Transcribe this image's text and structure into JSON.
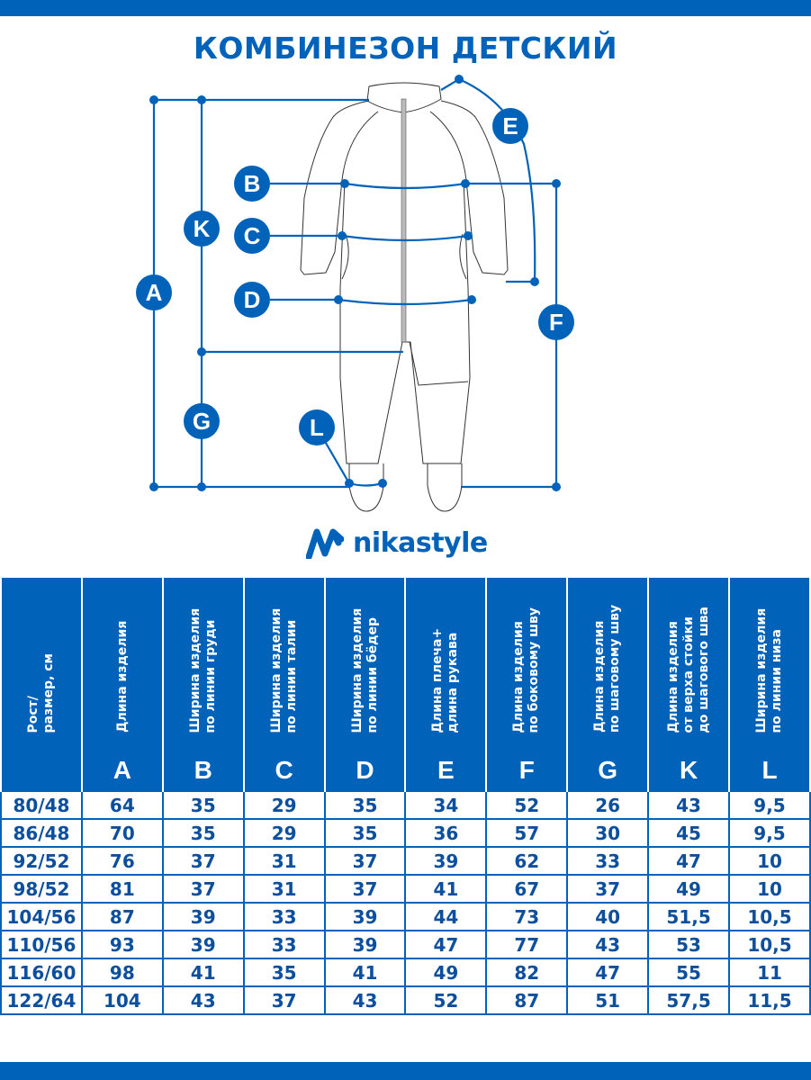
{
  "title": "КОМБИНЕЗОН ДЕТСКИЙ",
  "brand": {
    "name": "nikastyle",
    "color": "#0062b8"
  },
  "diagram_labels": [
    "A",
    "K",
    "G",
    "B",
    "C",
    "D",
    "E",
    "F",
    "L"
  ],
  "table": {
    "headers": [
      {
        "text": "Рост/\nразмер, см",
        "letter": ""
      },
      {
        "text": "Длина изделия",
        "letter": "A"
      },
      {
        "text": "Ширина изделия\nпо линии груди",
        "letter": "B"
      },
      {
        "text": "Ширина изделия\nпо линии талии",
        "letter": "C"
      },
      {
        "text": "Ширина изделия\nпо линии бёдер",
        "letter": "D"
      },
      {
        "text": "Длина плеча+\nдлина рукава",
        "letter": "E"
      },
      {
        "text": "Длина изделия\nпо боковому шву",
        "letter": "F"
      },
      {
        "text": "Длина изделия\nпо шаговому шву",
        "letter": "G"
      },
      {
        "text": "Длина изделия\nот верха стойки\nдо шагового шва",
        "letter": "K"
      },
      {
        "text": "Ширина изделия\nпо линии низа",
        "letter": "L"
      }
    ],
    "rows": [
      [
        "80/48",
        "64",
        "35",
        "29",
        "35",
        "34",
        "52",
        "26",
        "43",
        "9,5"
      ],
      [
        "86/48",
        "70",
        "35",
        "29",
        "35",
        "36",
        "57",
        "30",
        "45",
        "9,5"
      ],
      [
        "92/52",
        "76",
        "37",
        "31",
        "37",
        "39",
        "62",
        "33",
        "47",
        "10"
      ],
      [
        "98/52",
        "81",
        "37",
        "31",
        "37",
        "41",
        "67",
        "37",
        "49",
        "10"
      ],
      [
        "104/56",
        "87",
        "39",
        "33",
        "39",
        "44",
        "73",
        "40",
        "51,5",
        "10,5"
      ],
      [
        "110/56",
        "93",
        "39",
        "33",
        "39",
        "47",
        "77",
        "43",
        "53",
        "10,5"
      ],
      [
        "116/60",
        "98",
        "41",
        "35",
        "41",
        "49",
        "82",
        "47",
        "55",
        "11"
      ],
      [
        "122/64",
        "104",
        "43",
        "37",
        "43",
        "52",
        "87",
        "51",
        "57,5",
        "11,5"
      ]
    ]
  }
}
